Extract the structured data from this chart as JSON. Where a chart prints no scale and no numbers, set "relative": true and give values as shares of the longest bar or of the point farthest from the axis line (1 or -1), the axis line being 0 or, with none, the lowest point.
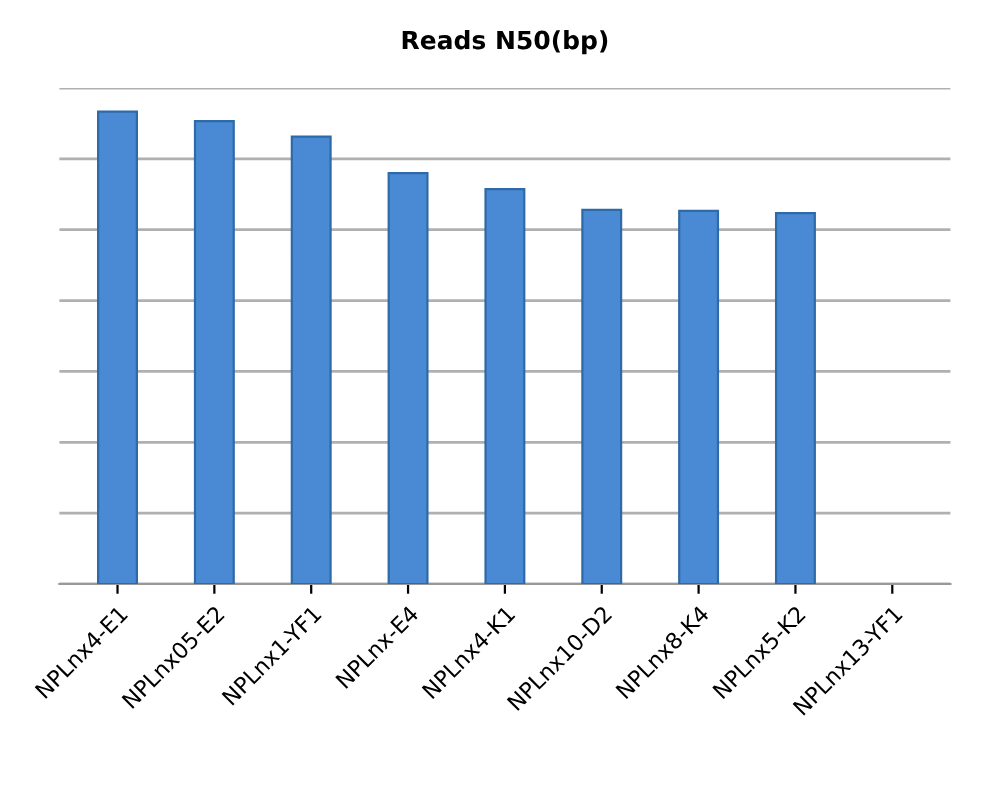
{
  "chart_data": {
    "type": "bar",
    "title": "Reads N50(bp)",
    "categories": [
      "NPLnx4-E1",
      "NPLnx05-E2",
      "NPLnx1-YF1",
      "NPLnx-E4",
      "NPLnx4-K1",
      "NPLnx10-D2",
      "NPLnx8-K4",
      "NPLnx5-K2",
      "NPLnx13-YF1"
    ],
    "values": [
      1,
      0.98,
      0.947,
      0.87,
      0.836,
      0.792,
      0.79,
      0.785,
      null
    ],
    "color": "#4a8ad4",
    "relative": true,
    "grid": "y"
  }
}
